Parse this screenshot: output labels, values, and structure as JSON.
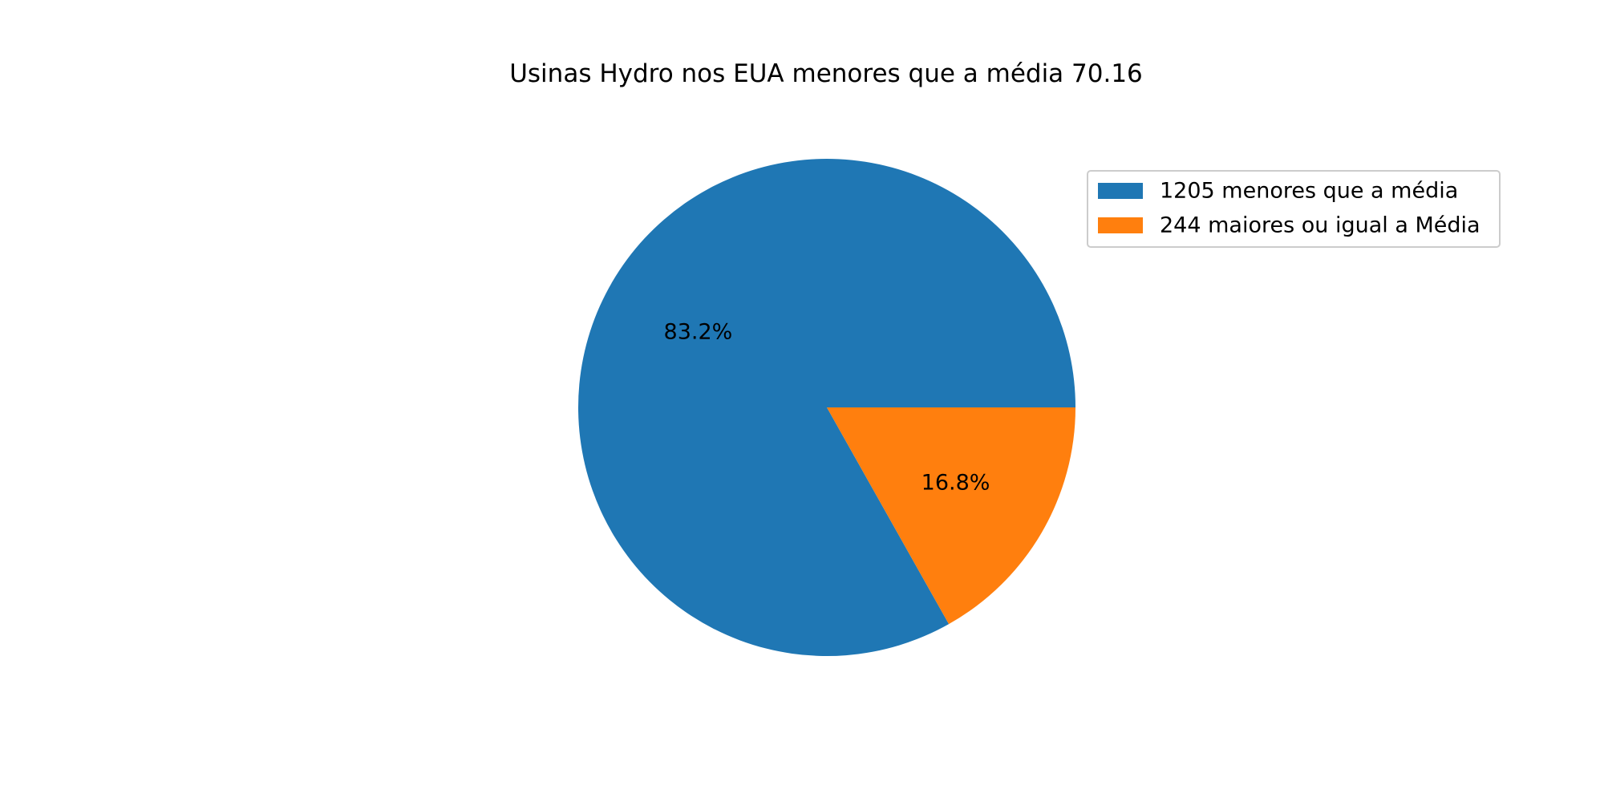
{
  "chart_data": {
    "type": "pie",
    "title": "Usinas Hydro nos EUA menores que a média 70.16",
    "slices": [
      {
        "label": "1205 menores que a média",
        "value": 1205,
        "percent_label": "83.2%",
        "color": "#1f77b4"
      },
      {
        "label": "244 maiores ou igual a Média",
        "value": 244,
        "percent_label": "16.8%",
        "color": "#ff7f0e"
      }
    ],
    "start_angle": "3 o'clock, counter-clockwise",
    "legend_position": "upper-right"
  }
}
